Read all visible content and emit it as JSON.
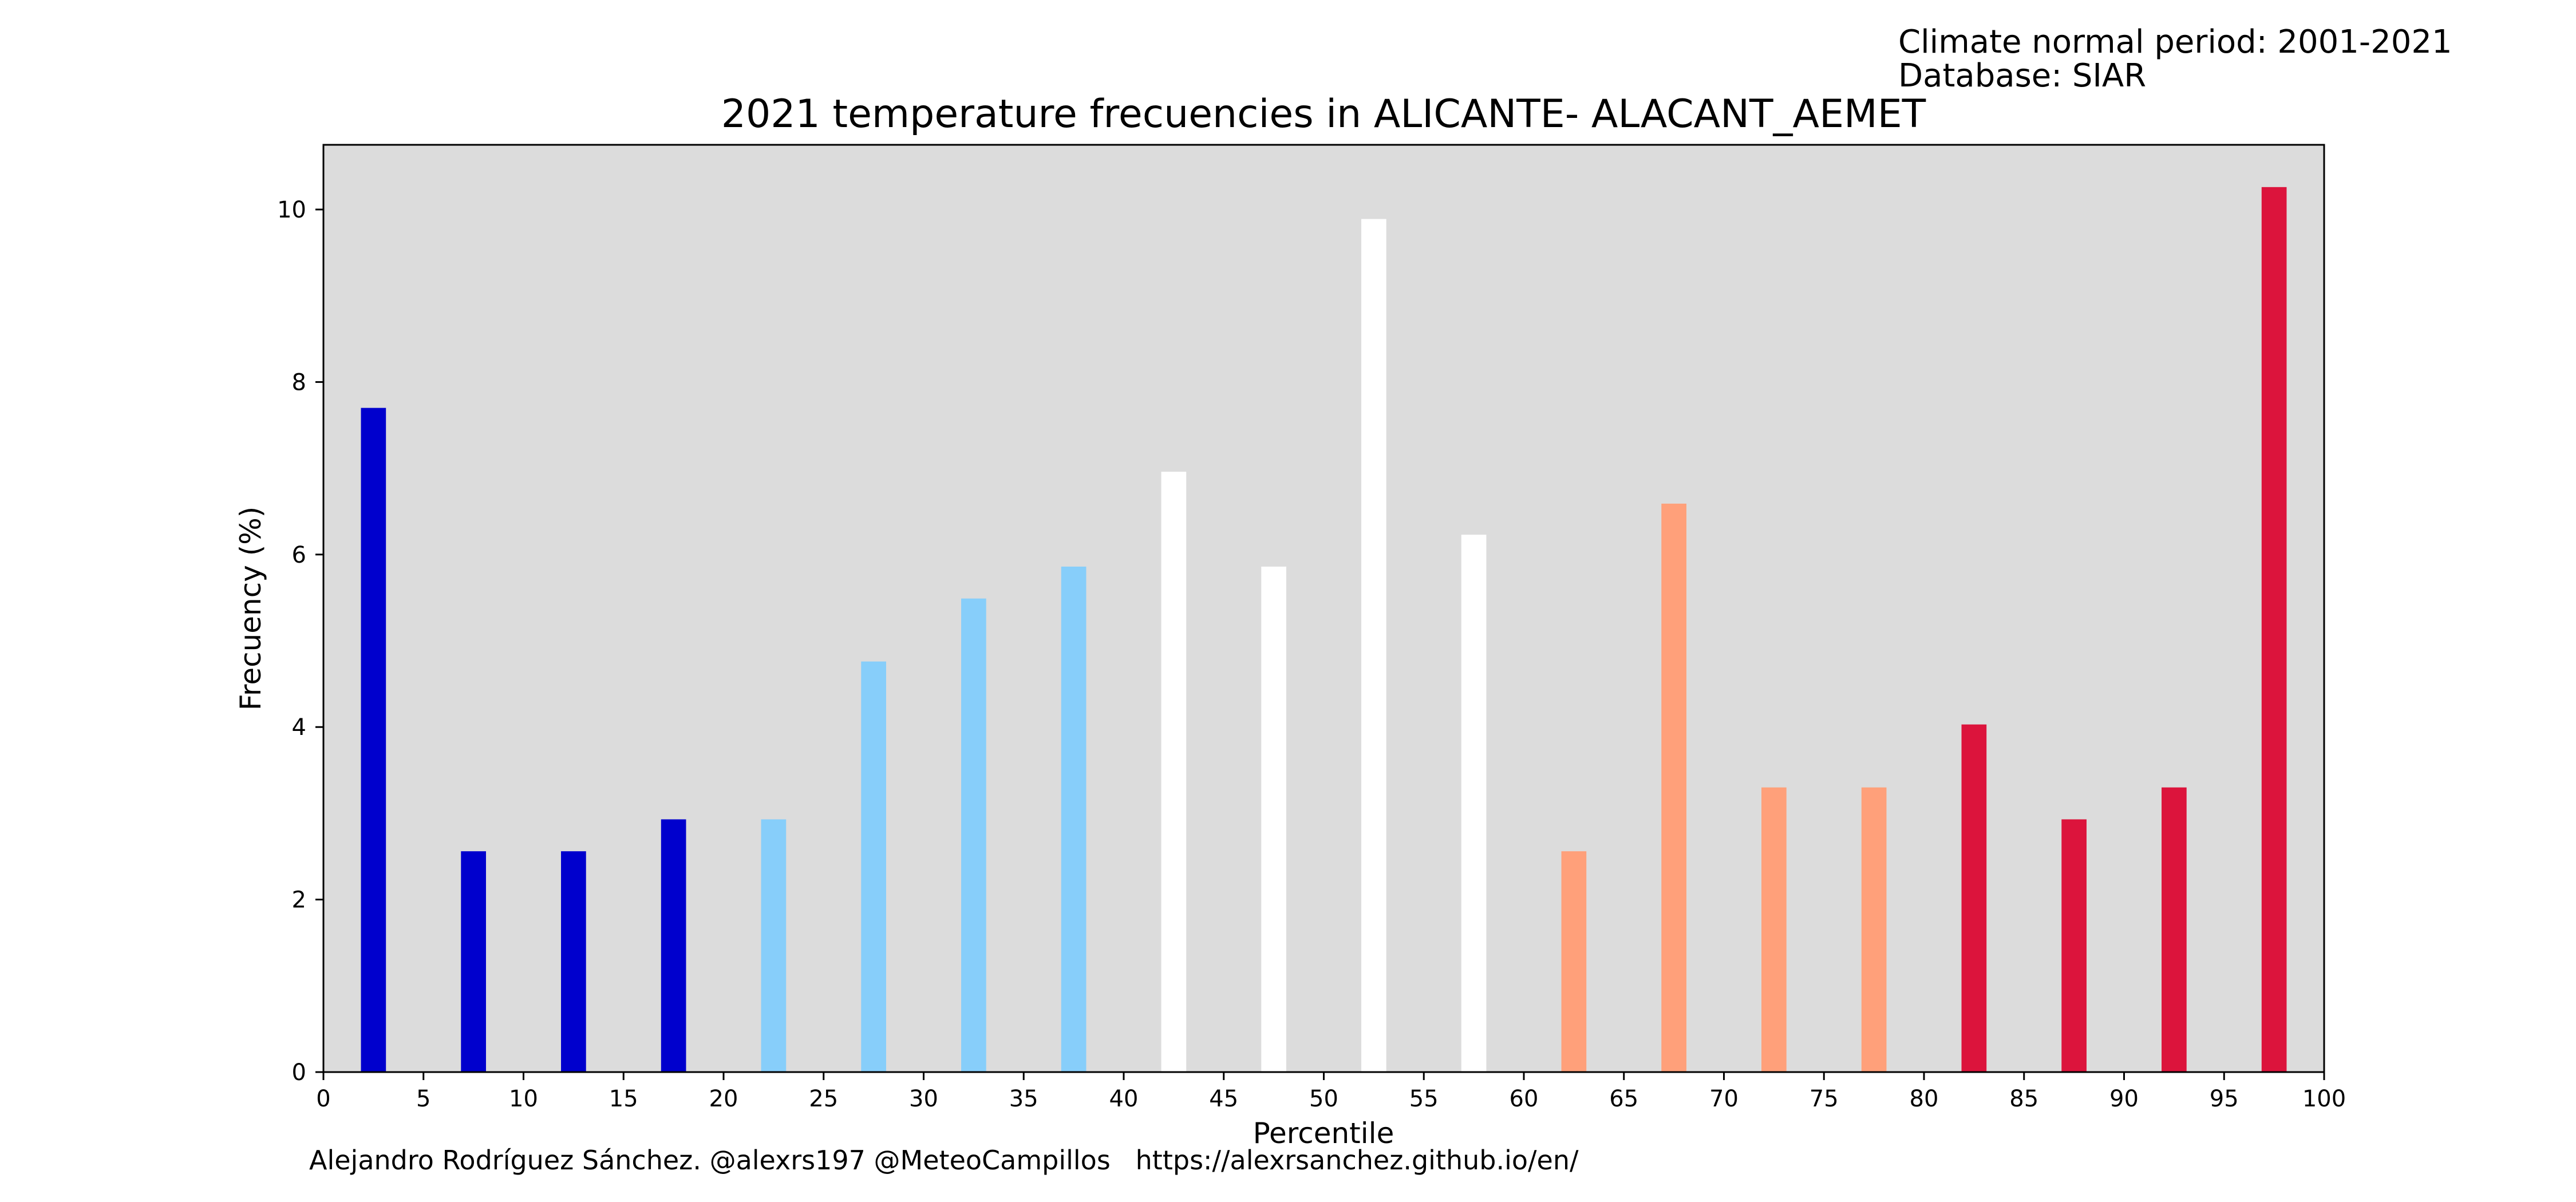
{
  "header": {
    "period_line": "Climate normal period: 2001-2021",
    "database_line": "Database: SIAR"
  },
  "footer": {
    "credits": "Alejandro Rodríguez Sánchez. @alexrs197 @MeteoCampillos   https://alexrsanchez.github.io/en/"
  },
  "chart_data": {
    "type": "bar",
    "title": "2021 temperature frecuencies in ALICANTE- ALACANT_AEMET",
    "xlabel": "Percentile",
    "ylabel": "Frecuency (%)",
    "xlim": [
      0,
      100
    ],
    "ylim": [
      0,
      10.75
    ],
    "x_ticks": [
      0,
      5,
      10,
      15,
      20,
      25,
      30,
      35,
      40,
      45,
      50,
      55,
      60,
      65,
      70,
      75,
      80,
      85,
      90,
      95,
      100
    ],
    "y_ticks": [
      0,
      2,
      4,
      6,
      8,
      10
    ],
    "grid": false,
    "background": "#dcdcdc",
    "bar_width": 1.25,
    "categories": [
      2.5,
      7.5,
      12.5,
      17.5,
      22.5,
      27.5,
      32.5,
      37.5,
      42.5,
      47.5,
      52.5,
      57.5,
      62.5,
      67.5,
      72.5,
      77.5,
      82.5,
      87.5,
      92.5,
      97.5
    ],
    "values": [
      7.7,
      2.56,
      2.56,
      2.93,
      2.93,
      4.76,
      5.49,
      5.86,
      6.96,
      5.86,
      9.89,
      6.23,
      2.56,
      6.59,
      3.3,
      3.3,
      4.03,
      2.93,
      3.3,
      10.26
    ],
    "colors": [
      "#0000cd",
      "#0000cd",
      "#0000cd",
      "#0000cd",
      "#87cefa",
      "#87cefa",
      "#87cefa",
      "#87cefa",
      "#ffffff",
      "#ffffff",
      "#ffffff",
      "#ffffff",
      "#ffa07a",
      "#ffa07a",
      "#ffa07a",
      "#ffa07a",
      "#dc143c",
      "#dc143c",
      "#dc143c",
      "#dc143c"
    ]
  }
}
